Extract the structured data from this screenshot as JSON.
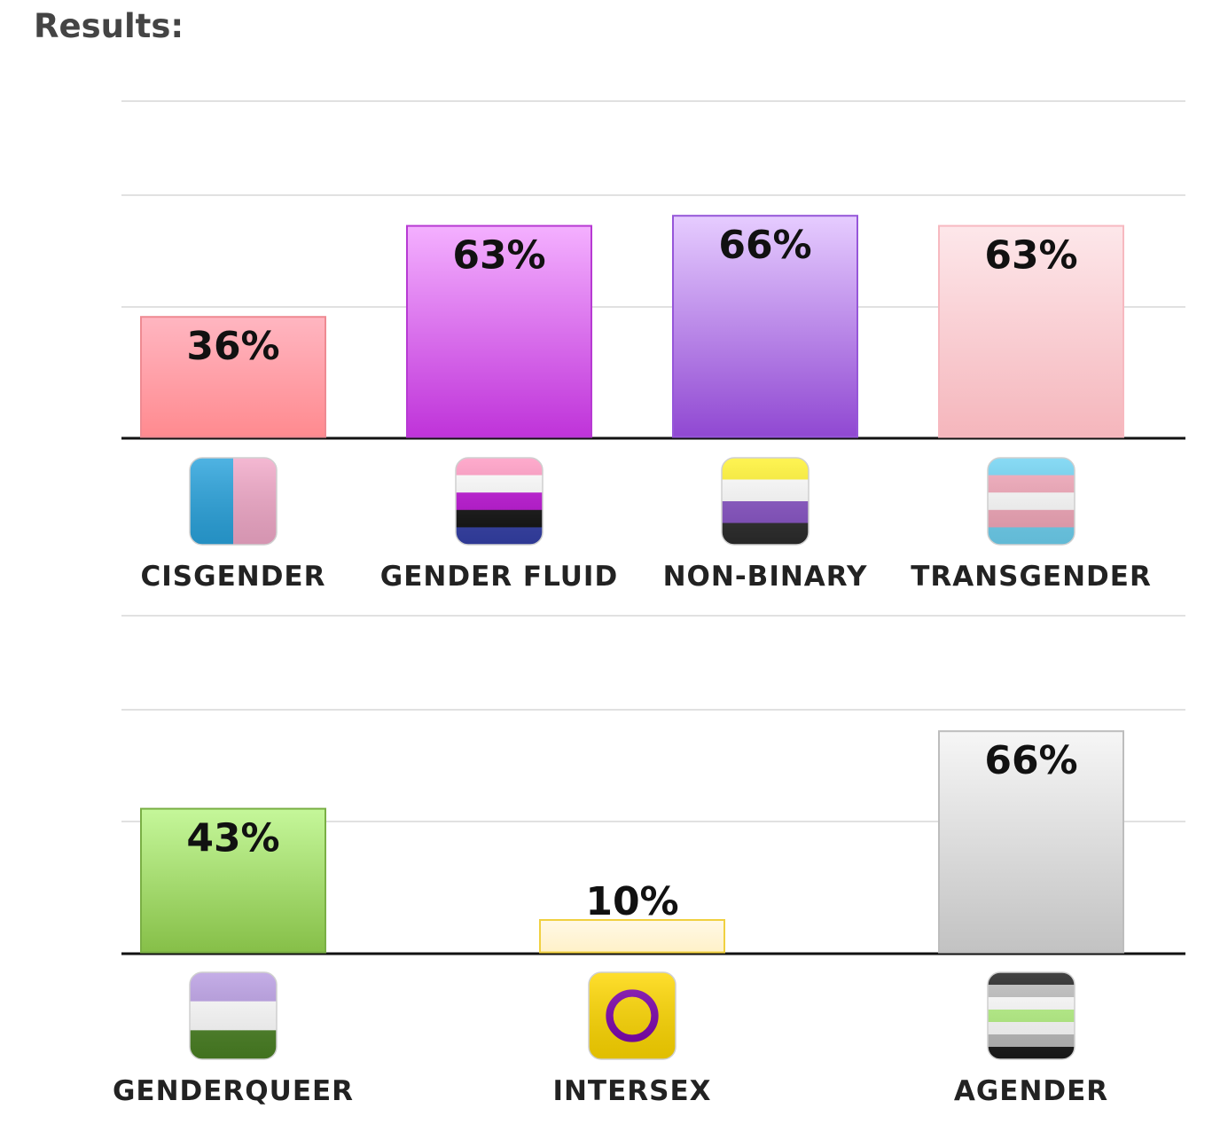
{
  "heading": "Results:",
  "chart_data": [
    {
      "type": "bar",
      "categories": [
        "CISGENDER",
        "GENDER FLUID",
        "NON-BINARY",
        "TRANSGENDER"
      ],
      "values": [
        36,
        63,
        66,
        63
      ],
      "data_labels": [
        "36%",
        "63%",
        "66%",
        "63%"
      ],
      "unit": "%",
      "ylim": [
        0,
        100
      ],
      "grid": true,
      "icons": [
        "cisgender-flag-icon",
        "genderfluid-flag-icon",
        "nonbinary-flag-icon",
        "transgender-flag-icon"
      ],
      "bar_colors": [
        [
          "#ffb6c1",
          "#ff8a8f",
          "#ee8a92"
        ],
        [
          "#f4b0ff",
          "#bf33d9",
          "#b73ad3"
        ],
        [
          "#e6ccff",
          "#9048d2",
          "#9656d9"
        ],
        [
          "#fde7ea",
          "#f5b6bc",
          "#f7b9c0"
        ]
      ]
    },
    {
      "type": "bar",
      "categories": [
        "GENDERQUEER",
        "INTERSEX",
        "AGENDER"
      ],
      "values": [
        43,
        10,
        66
      ],
      "data_labels": [
        "43%",
        "10%",
        "66%"
      ],
      "unit": "%",
      "ylim": [
        0,
        100
      ],
      "grid": true,
      "icons": [
        "genderqueer-flag-icon",
        "intersex-flag-icon",
        "agender-flag-icon"
      ],
      "bar_colors": [
        [
          "#c5f79a",
          "#86bf48",
          "#7aaf45"
        ],
        [
          "#fff8e6",
          "#fff1c8",
          "#f0d040"
        ],
        [
          "#f6f6f6",
          "#c2c2c2",
          "#bdbdbd"
        ]
      ]
    }
  ]
}
